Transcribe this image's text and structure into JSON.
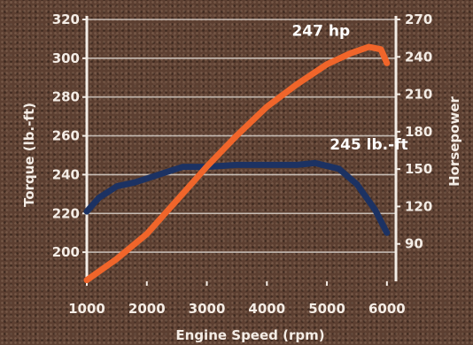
{
  "chart_data": {
    "type": "line",
    "xlabel": "Engine Speed (rpm)",
    "x_ticks": [
      1000,
      2000,
      3000,
      4000,
      5000,
      6000
    ],
    "xlim": [
      1000,
      6150
    ],
    "y_left": {
      "label": "Torque (lb.-ft)",
      "ticks": [
        200,
        220,
        240,
        260,
        280,
        300,
        320
      ],
      "lim": [
        185,
        320
      ]
    },
    "y_right": {
      "label": "Horsepower",
      "ticks": [
        90,
        120,
        150,
        180,
        210,
        240,
        270
      ],
      "lim": [
        60,
        270
      ]
    },
    "grid": true,
    "series": [
      {
        "axis": "left",
        "color": "#1c3263",
        "x": [
          1000,
          1200,
          1500,
          1800,
          2000,
          2300,
          2600,
          3000,
          3500,
          4000,
          4500,
          4800,
          5200,
          5500,
          5800,
          6000
        ],
        "values": [
          221,
          228,
          234,
          236,
          238,
          241,
          244,
          244,
          245,
          245,
          245,
          246,
          243,
          235,
          222,
          210
        ]
      },
      {
        "axis": "right",
        "color": "#f0652a",
        "x": [
          1000,
          1500,
          2000,
          2500,
          3000,
          3500,
          4000,
          4500,
          5000,
          5400,
          5700,
          5900,
          6000
        ],
        "values": [
          61,
          78,
          98,
          125,
          152,
          177,
          200,
          218,
          234,
          243,
          248,
          246,
          235
        ]
      }
    ],
    "annotations": [
      {
        "text": "247 hp",
        "x": 4900,
        "y_right": 257
      },
      {
        "text": "245 lb.-ft",
        "x": 5700,
        "y_left": 253
      }
    ]
  }
}
